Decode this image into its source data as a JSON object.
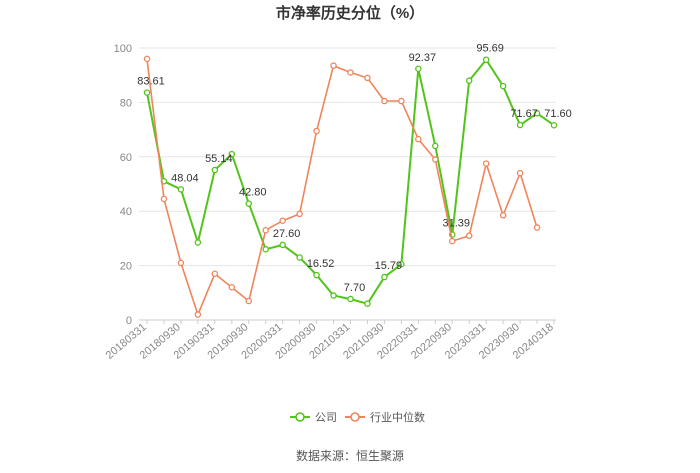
{
  "chart_data": {
    "type": "line",
    "title": "市净率历史分位（%）",
    "source": "数据来源：恒生聚源",
    "ylim": [
      0,
      100
    ],
    "yticks": [
      0,
      20,
      40,
      60,
      80,
      100
    ],
    "grid": true,
    "legend_position": "bottom",
    "x_tick_labels": [
      "20180331",
      "20180930",
      "20190331",
      "20190930",
      "20200331",
      "20200930",
      "20210331",
      "20210930",
      "20220331",
      "20220930",
      "20230331",
      "20230930",
      "20240318"
    ],
    "x": [
      "20180331",
      "20180630",
      "20180930",
      "20181231",
      "20190331",
      "20190630",
      "20190930",
      "20191231",
      "20200331",
      "20200630",
      "20200930",
      "20201231",
      "20210331",
      "20210630",
      "20210930",
      "20211231",
      "20220331",
      "20220630",
      "20220930",
      "20221231",
      "20230331",
      "20230630",
      "20230930",
      "20231231",
      "20240318"
    ],
    "series": [
      {
        "name": "公司",
        "color": "#52c41a",
        "values": [
          83.61,
          51.0,
          48.04,
          28.5,
          55.14,
          61.0,
          42.8,
          26.0,
          27.6,
          23.0,
          16.52,
          9.0,
          7.7,
          6.0,
          15.79,
          20.5,
          92.37,
          64.0,
          31.39,
          88.0,
          95.69,
          86.0,
          71.67,
          76.0,
          71.6
        ],
        "labels": {
          "0": "83.61",
          "2": "48.04",
          "4": "55.14",
          "6": "42.80",
          "8": "27.60",
          "10": "16.52",
          "12": "7.70",
          "14": "15.79",
          "16": "92.37",
          "18": "31.39",
          "20": "95.69",
          "22": "71.67",
          "24": "71.60"
        }
      },
      {
        "name": "行业中位数",
        "color": "#f0845a",
        "values": [
          96.0,
          44.5,
          21.0,
          2.0,
          17.0,
          12.0,
          7.0,
          33.0,
          36.5,
          39.0,
          69.5,
          93.5,
          91.0,
          89.0,
          80.5,
          80.5,
          66.5,
          59.0,
          29.0,
          31.0,
          57.5,
          38.5,
          54.0,
          34.0,
          null
        ]
      }
    ]
  }
}
